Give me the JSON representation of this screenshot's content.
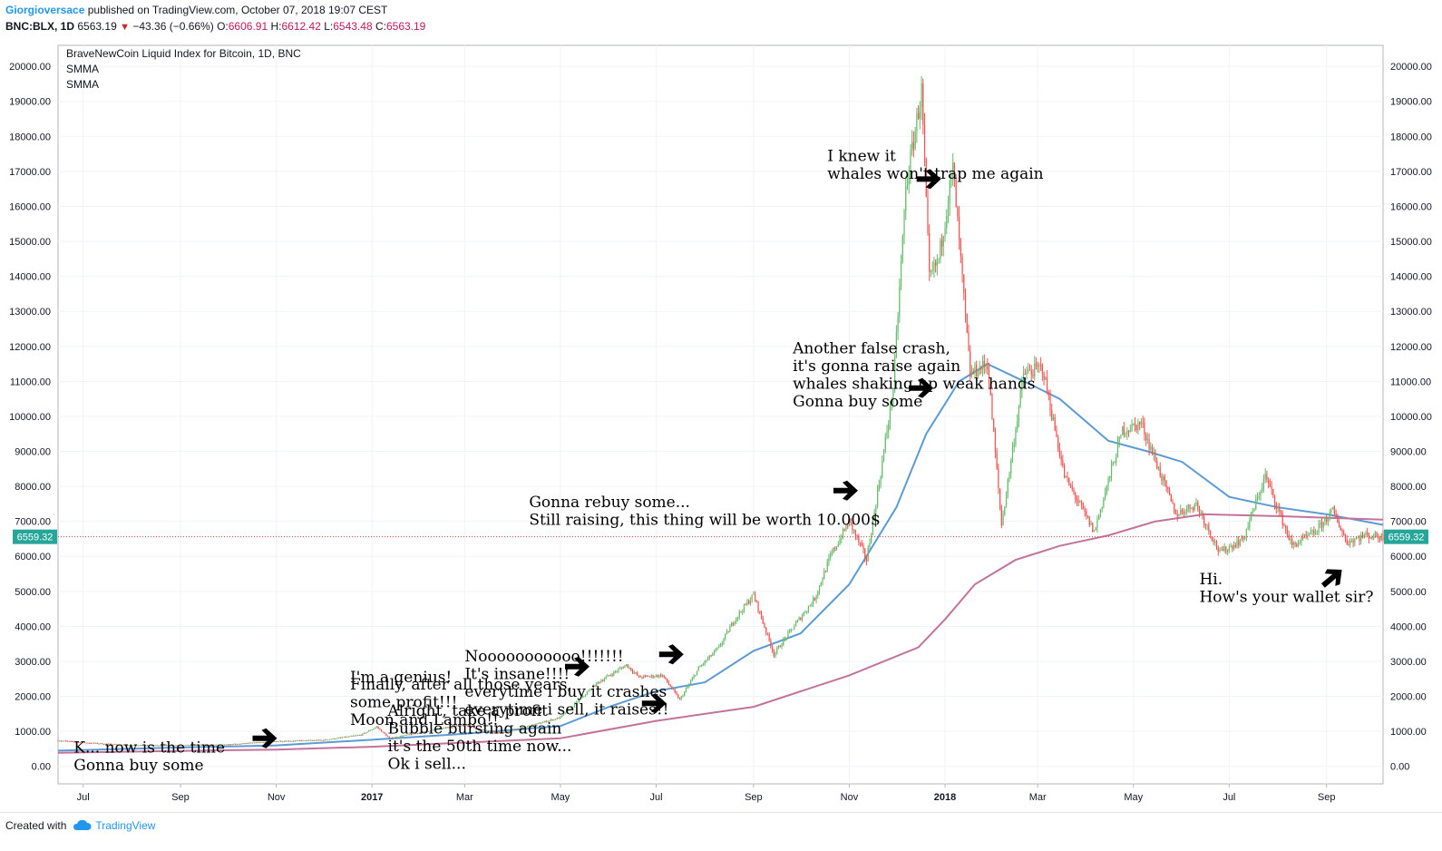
{
  "header": {
    "author": "Giorgioversace",
    "published_text": "published on TradingView.com, October 07, 2018 19:07 CEST",
    "symbol": "BNC:BLX, 1D",
    "last": "6563.19",
    "change": "−43.36 (−0.66%)",
    "o_label": "O:",
    "o_value": "6606.91",
    "h_label": "H:",
    "h_value": "6612.42",
    "l_label": "L:",
    "l_value": "6543.48",
    "c_label": "C:",
    "c_value": "6563.19"
  },
  "legend": {
    "title": "BraveNewCoin Liquid Index for Bitcoin, 1D, BNC",
    "indicator1": "SMMA",
    "indicator2": "SMMA"
  },
  "price_label": "6559.32",
  "footer": {
    "created_with": "Created with",
    "brand": "TradingView"
  },
  "colors": {
    "up": "#66bb6a",
    "down": "#ef5350",
    "smma_fast": "#5b9bd5",
    "smma_slow": "#c2739a",
    "price_line": "#e53935",
    "axis_text": "#131722",
    "grid": "#f0f3fa"
  },
  "chart_data": {
    "type": "candlestick",
    "title": "BraveNewCoin Liquid Index for Bitcoin, 1D, BNC",
    "ylim": [
      -500,
      20600
    ],
    "y_ticks": [
      "0.00",
      "1000.00",
      "2000.00",
      "3000.00",
      "4000.00",
      "5000.00",
      "6000.00",
      "7000.00",
      "8000.00",
      "9000.00",
      "10000.00",
      "11000.00",
      "12000.00",
      "13000.00",
      "14000.00",
      "15000.00",
      "16000.00",
      "17000.00",
      "18000.00",
      "19000.00",
      "20000.00"
    ],
    "x_ticks": [
      {
        "label": "Jul",
        "date": "2016-07-01",
        "bold": false
      },
      {
        "label": "Sep",
        "date": "2016-09-01",
        "bold": false
      },
      {
        "label": "Nov",
        "date": "2016-11-01",
        "bold": false
      },
      {
        "label": "2017",
        "date": "2017-01-01",
        "bold": true
      },
      {
        "label": "Mar",
        "date": "2017-03-01",
        "bold": false
      },
      {
        "label": "May",
        "date": "2017-05-01",
        "bold": false
      },
      {
        "label": "Jul",
        "date": "2017-07-01",
        "bold": false
      },
      {
        "label": "Sep",
        "date": "2017-09-01",
        "bold": false
      },
      {
        "label": "Nov",
        "date": "2017-11-01",
        "bold": false
      },
      {
        "label": "2018",
        "date": "2018-01-01",
        "bold": true
      },
      {
        "label": "Mar",
        "date": "2018-03-01",
        "bold": false
      },
      {
        "label": "May",
        "date": "2018-05-01",
        "bold": false
      },
      {
        "label": "Jul",
        "date": "2018-07-01",
        "bold": false
      },
      {
        "label": "Sep",
        "date": "2018-09-01",
        "bold": false
      }
    ],
    "x_range": [
      "2016-06-15",
      "2018-10-07"
    ],
    "price_path": [
      [
        "2016-06-15",
        740
      ],
      [
        "2016-07-01",
        680
      ],
      [
        "2016-08-01",
        600
      ],
      [
        "2016-09-01",
        605
      ],
      [
        "2016-10-01",
        620
      ],
      [
        "2016-11-01",
        720
      ],
      [
        "2016-12-01",
        750
      ],
      [
        "2016-12-25",
        900
      ],
      [
        "2017-01-04",
        1130
      ],
      [
        "2017-01-12",
        800
      ],
      [
        "2017-02-01",
        970
      ],
      [
        "2017-03-01",
        1200
      ],
      [
        "2017-03-10",
        1050
      ],
      [
        "2017-03-25",
        960
      ],
      [
        "2017-04-15",
        1200
      ],
      [
        "2017-05-01",
        1400
      ],
      [
        "2017-05-25",
        2400
      ],
      [
        "2017-06-12",
        2900
      ],
      [
        "2017-06-20",
        2550
      ],
      [
        "2017-07-05",
        2600
      ],
      [
        "2017-07-16",
        1900
      ],
      [
        "2017-07-28",
        2800
      ],
      [
        "2017-08-10",
        3400
      ],
      [
        "2017-08-20",
        4200
      ],
      [
        "2017-09-01",
        4900
      ],
      [
        "2017-09-14",
        3200
      ],
      [
        "2017-09-25",
        3900
      ],
      [
        "2017-10-10",
        4800
      ],
      [
        "2017-10-20",
        6000
      ],
      [
        "2017-11-01",
        7000
      ],
      [
        "2017-11-12",
        5900
      ],
      [
        "2017-11-20",
        8100
      ],
      [
        "2017-11-29",
        10800
      ],
      [
        "2017-12-07",
        16500
      ],
      [
        "2017-12-17",
        19300
      ],
      [
        "2017-12-22",
        13900
      ],
      [
        "2017-12-28",
        14500
      ],
      [
        "2018-01-06",
        17100
      ],
      [
        "2018-01-17",
        11200
      ],
      [
        "2018-01-28",
        11500
      ],
      [
        "2018-02-06",
        6900
      ],
      [
        "2018-02-20",
        11200
      ],
      [
        "2018-03-04",
        11400
      ],
      [
        "2018-03-18",
        8300
      ],
      [
        "2018-04-06",
        6700
      ],
      [
        "2018-04-24",
        9600
      ],
      [
        "2018-05-06",
        9800
      ],
      [
        "2018-05-28",
        7200
      ],
      [
        "2018-06-10",
        7500
      ],
      [
        "2018-06-25",
        6100
      ],
      [
        "2018-07-10",
        6500
      ],
      [
        "2018-07-24",
        8300
      ],
      [
        "2018-08-10",
        6300
      ],
      [
        "2018-08-25",
        6700
      ],
      [
        "2018-09-05",
        7300
      ],
      [
        "2018-09-14",
        6400
      ],
      [
        "2018-09-25",
        6600
      ],
      [
        "2018-10-07",
        6563
      ]
    ],
    "series": [
      {
        "type": "smma",
        "points": [
          [
            "2016-06-15",
            450
          ],
          [
            "2016-09-01",
            540
          ],
          [
            "2016-11-01",
            600
          ],
          [
            "2017-01-01",
            760
          ],
          [
            "2017-03-01",
            930
          ],
          [
            "2017-05-01",
            1150
          ],
          [
            "2017-06-01",
            1700
          ],
          [
            "2017-07-01",
            2150
          ],
          [
            "2017-08-01",
            2400
          ],
          [
            "2017-09-01",
            3300
          ],
          [
            "2017-10-01",
            3800
          ],
          [
            "2017-11-01",
            5200
          ],
          [
            "2017-12-01",
            7400
          ],
          [
            "2017-12-20",
            9500
          ],
          [
            "2018-01-10",
            11000
          ],
          [
            "2018-01-28",
            11500
          ],
          [
            "2018-02-25",
            10900
          ],
          [
            "2018-03-15",
            10500
          ],
          [
            "2018-04-15",
            9300
          ],
          [
            "2018-05-10",
            9000
          ],
          [
            "2018-06-01",
            8700
          ],
          [
            "2018-07-01",
            7700
          ],
          [
            "2018-08-01",
            7400
          ],
          [
            "2018-09-01",
            7200
          ],
          [
            "2018-10-07",
            6900
          ]
        ]
      },
      {
        "type": "smma",
        "points": [
          [
            "2016-06-15",
            390
          ],
          [
            "2016-11-01",
            480
          ],
          [
            "2017-01-01",
            560
          ],
          [
            "2017-05-01",
            800
          ],
          [
            "2017-07-01",
            1300
          ],
          [
            "2017-09-01",
            1700
          ],
          [
            "2017-11-01",
            2600
          ],
          [
            "2017-12-15",
            3400
          ],
          [
            "2018-01-01",
            4200
          ],
          [
            "2018-01-20",
            5200
          ],
          [
            "2018-02-15",
            5900
          ],
          [
            "2018-03-15",
            6300
          ],
          [
            "2018-04-15",
            6600
          ],
          [
            "2018-05-15",
            7000
          ],
          [
            "2018-06-15",
            7200
          ],
          [
            "2018-08-01",
            7150
          ],
          [
            "2018-10-07",
            7050
          ]
        ]
      }
    ],
    "annotations": [
      {
        "lines": [
          "K... now is the time",
          "Gonna buy some"
        ],
        "date": "2016-06-25",
        "price": 400
      },
      {
        "lines": [
          "I'm a genius!"
        ],
        "date": "2016-12-18",
        "price": 2400
      },
      {
        "lines": [
          "Finally, after all those years,",
          "some profit!!!",
          "Moon and Lambo!!"
        ],
        "date": "2016-12-18",
        "price": 2200
      },
      {
        "lines": [
          "Alright, take a profit",
          "Bubble bursting again",
          "it's the 50th time now...",
          "Ok i sell..."
        ],
        "date": "2017-01-11",
        "price": 1450
      },
      {
        "lines": [
          "Nooooooooooo!!!!!!!",
          "It's insane!!!!",
          "everytime i buy it crashes",
          "everytime i sell, it raises!!"
        ],
        "date": "2017-03-01",
        "price": 3000
      },
      {
        "lines": [
          "Gonna rebuy some...",
          "Still raising, this thing will be worth 10.000$"
        ],
        "date": "2017-04-11",
        "price": 7400
      },
      {
        "lines": [
          "Another false crash,",
          "it's gonna raise again",
          "whales shaking up weak hands",
          "Gonna buy some"
        ],
        "date": "2017-09-26",
        "price": 11800
      },
      {
        "lines": [
          "I knew it",
          "whales won't trap me again"
        ],
        "date": "2017-10-18",
        "price": 17300
      },
      {
        "lines": [
          "Hi.",
          "How's your wallet sir?"
        ],
        "date": "2018-06-12",
        "price": 5200
      }
    ],
    "arrows": [
      {
        "date": "2016-10-25",
        "price": 800,
        "direction": "right"
      },
      {
        "date": "2017-05-12",
        "price": 2850,
        "direction": "right"
      },
      {
        "date": "2017-06-30",
        "price": 1800,
        "direction": "right"
      },
      {
        "date": "2017-07-11",
        "price": 3200,
        "direction": "right"
      },
      {
        "date": "2017-10-30",
        "price": 7880,
        "direction": "right"
      },
      {
        "date": "2017-12-22",
        "price": 16780,
        "direction": "right"
      },
      {
        "date": "2017-12-17",
        "price": 10810,
        "direction": "right"
      },
      {
        "date": "2018-09-05",
        "price": 5400,
        "direction": "up-right"
      }
    ]
  }
}
